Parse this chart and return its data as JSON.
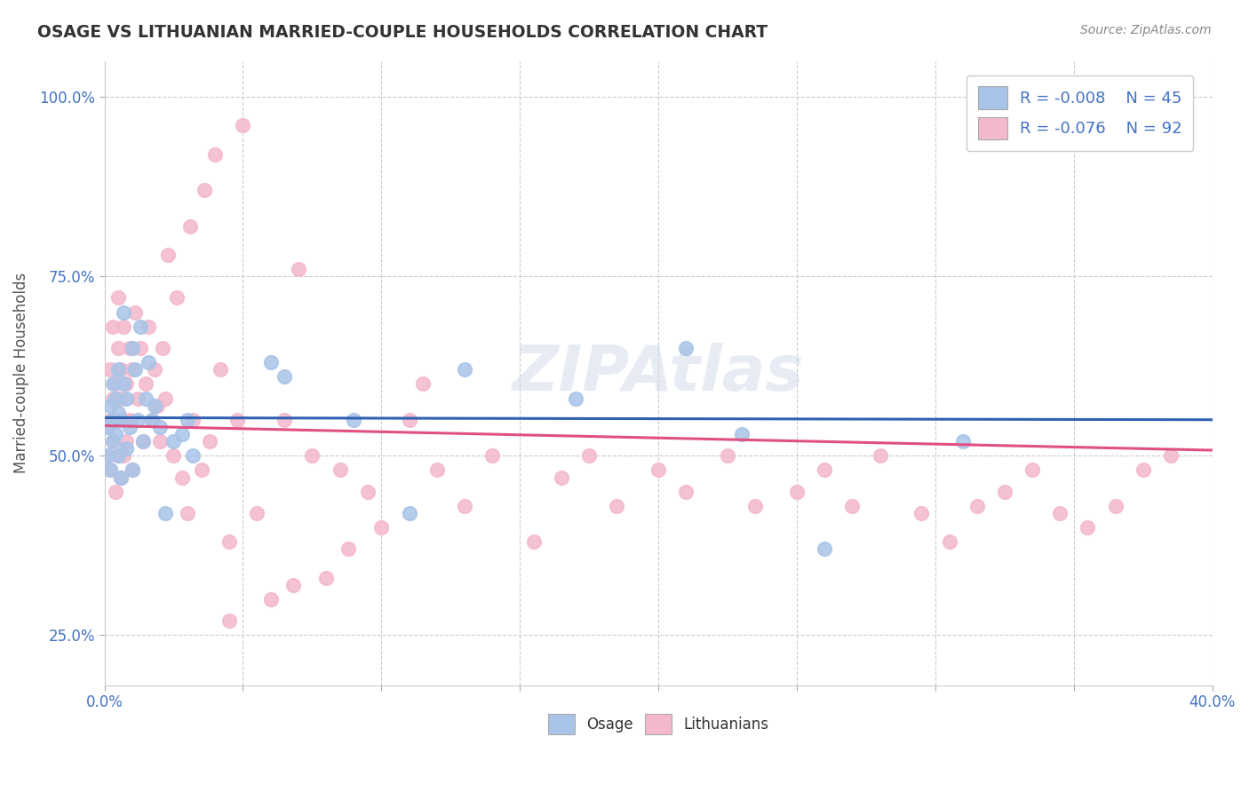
{
  "title": "OSAGE VS LITHUANIAN MARRIED-COUPLE HOUSEHOLDS CORRELATION CHART",
  "source": "Source: ZipAtlas.com",
  "xlabel_bottom": "Osage",
  "xlabel_bottom2": "Lithuanians",
  "ylabel": "Married-couple Households",
  "xlim": [
    0.0,
    0.4
  ],
  "ylim": [
    0.18,
    1.05
  ],
  "xticks": [
    0.0,
    0.05,
    0.1,
    0.15,
    0.2,
    0.25,
    0.3,
    0.35,
    0.4
  ],
  "yticks": [
    0.25,
    0.5,
    0.75,
    1.0
  ],
  "osage_R": -0.008,
  "osage_N": 45,
  "lith_R": -0.076,
  "lith_N": 92,
  "osage_color": "#a8c4e8",
  "lith_color": "#f4b8cc",
  "osage_line_color": "#3060b0",
  "lith_line_color": "#e05080",
  "legend_text_color": "#4472c4",
  "background_color": "#ffffff",
  "grid_color": "#cccccc",
  "watermark": "ZIPAtlas",
  "osage_x": [
    0.001,
    0.001,
    0.002,
    0.002,
    0.003,
    0.003,
    0.003,
    0.004,
    0.004,
    0.005,
    0.005,
    0.005,
    0.006,
    0.006,
    0.007,
    0.007,
    0.008,
    0.008,
    0.009,
    0.01,
    0.01,
    0.011,
    0.012,
    0.013,
    0.014,
    0.015,
    0.016,
    0.017,
    0.018,
    0.02,
    0.022,
    0.025,
    0.028,
    0.03,
    0.032,
    0.06,
    0.065,
    0.09,
    0.11,
    0.13,
    0.17,
    0.21,
    0.23,
    0.26,
    0.31
  ],
  "osage_y": [
    0.54,
    0.5,
    0.57,
    0.48,
    0.6,
    0.55,
    0.52,
    0.58,
    0.53,
    0.62,
    0.5,
    0.56,
    0.55,
    0.47,
    0.7,
    0.6,
    0.58,
    0.51,
    0.54,
    0.65,
    0.48,
    0.62,
    0.55,
    0.68,
    0.52,
    0.58,
    0.63,
    0.55,
    0.57,
    0.54,
    0.42,
    0.52,
    0.53,
    0.55,
    0.5,
    0.63,
    0.61,
    0.55,
    0.42,
    0.62,
    0.58,
    0.65,
    0.53,
    0.37,
    0.52
  ],
  "lith_x": [
    0.001,
    0.001,
    0.002,
    0.002,
    0.002,
    0.003,
    0.003,
    0.003,
    0.004,
    0.004,
    0.004,
    0.005,
    0.005,
    0.005,
    0.006,
    0.006,
    0.006,
    0.007,
    0.007,
    0.007,
    0.008,
    0.008,
    0.009,
    0.009,
    0.01,
    0.01,
    0.011,
    0.012,
    0.013,
    0.014,
    0.015,
    0.016,
    0.017,
    0.018,
    0.019,
    0.02,
    0.021,
    0.022,
    0.025,
    0.028,
    0.03,
    0.032,
    0.035,
    0.038,
    0.042,
    0.048,
    0.055,
    0.065,
    0.075,
    0.085,
    0.095,
    0.11,
    0.12,
    0.13,
    0.14,
    0.155,
    0.165,
    0.175,
    0.185,
    0.2,
    0.21,
    0.225,
    0.235,
    0.25,
    0.26,
    0.27,
    0.28,
    0.295,
    0.305,
    0.315,
    0.325,
    0.335,
    0.345,
    0.355,
    0.365,
    0.375,
    0.385,
    0.045,
    0.068,
    0.088,
    0.1,
    0.115,
    0.045,
    0.06,
    0.08,
    0.023,
    0.026,
    0.031,
    0.036,
    0.04,
    0.05,
    0.07
  ],
  "lith_y": [
    0.54,
    0.5,
    0.62,
    0.55,
    0.48,
    0.68,
    0.52,
    0.58,
    0.6,
    0.45,
    0.55,
    0.65,
    0.5,
    0.72,
    0.58,
    0.62,
    0.47,
    0.55,
    0.68,
    0.5,
    0.6,
    0.52,
    0.65,
    0.55,
    0.62,
    0.48,
    0.7,
    0.58,
    0.65,
    0.52,
    0.6,
    0.68,
    0.55,
    0.62,
    0.57,
    0.52,
    0.65,
    0.58,
    0.5,
    0.47,
    0.42,
    0.55,
    0.48,
    0.52,
    0.62,
    0.55,
    0.42,
    0.55,
    0.5,
    0.48,
    0.45,
    0.55,
    0.48,
    0.43,
    0.5,
    0.38,
    0.47,
    0.5,
    0.43,
    0.48,
    0.45,
    0.5,
    0.43,
    0.45,
    0.48,
    0.43,
    0.5,
    0.42,
    0.38,
    0.43,
    0.45,
    0.48,
    0.42,
    0.4,
    0.43,
    0.48,
    0.5,
    0.38,
    0.32,
    0.37,
    0.4,
    0.6,
    0.27,
    0.3,
    0.33,
    0.78,
    0.72,
    0.82,
    0.87,
    0.92,
    0.96,
    0.76
  ]
}
